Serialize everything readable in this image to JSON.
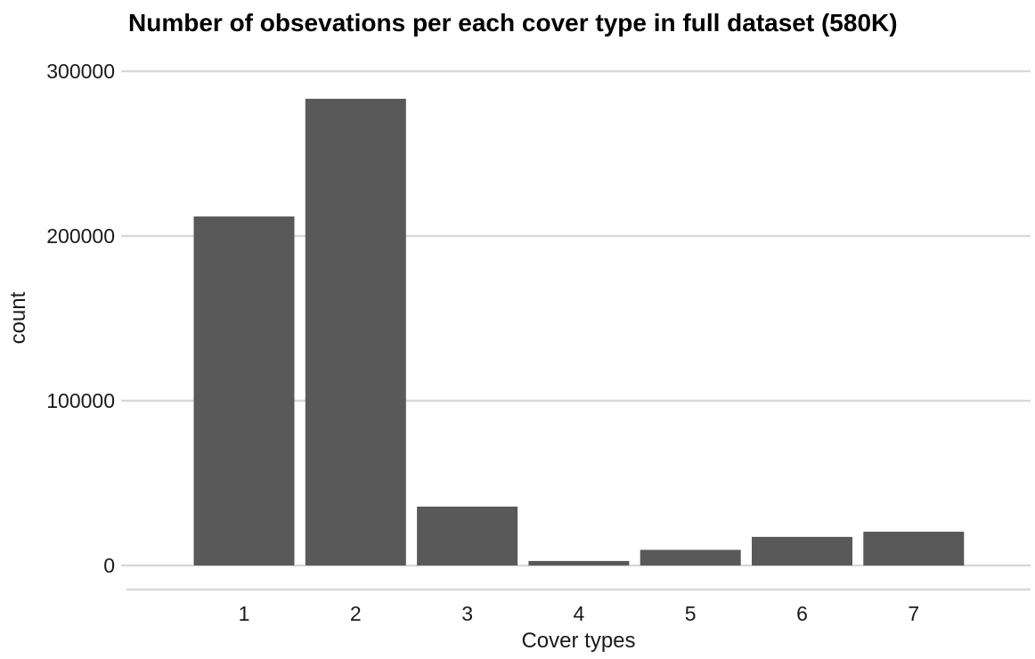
{
  "chart_data": {
    "type": "bar",
    "title": "Number of obsevations per each cover type in full dataset (580K)",
    "xlabel": "Cover types",
    "ylabel": "count",
    "categories": [
      "1",
      "2",
      "3",
      "4",
      "5",
      "6",
      "7"
    ],
    "values": [
      211840,
      283301,
      35754,
      2747,
      9493,
      17367,
      20510
    ],
    "ylim": [
      -14165,
      300000
    ],
    "yticks": [
      0,
      100000,
      200000,
      300000
    ],
    "ytick_labels": [
      "0",
      "100000",
      "200000",
      "300000"
    ],
    "grid": "horizontal major",
    "legend": "none",
    "colors": {
      "bar": "#595959",
      "grid": "#d9d9d9",
      "background": "#ffffff"
    }
  }
}
